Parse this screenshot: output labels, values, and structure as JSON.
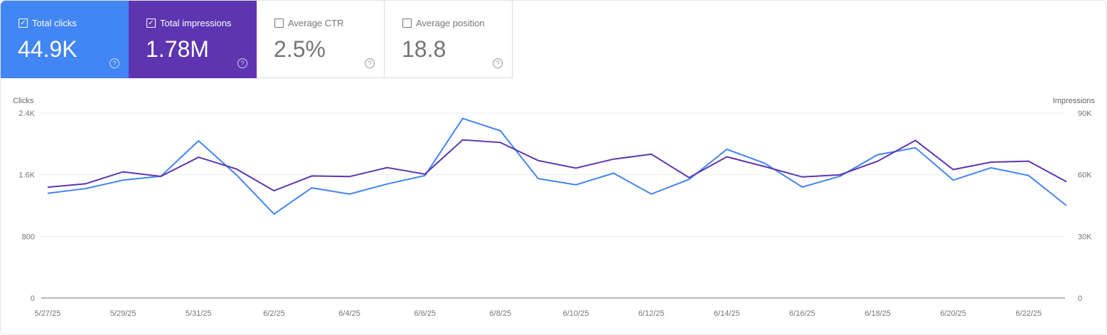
{
  "cards": [
    {
      "label": "Total clicks",
      "value": "44.9K",
      "checked": true,
      "bg": "#4285f4",
      "fg": "#ffffff"
    },
    {
      "label": "Total impressions",
      "value": "1.78M",
      "checked": true,
      "bg": "#5e35b1",
      "fg": "#ffffff"
    },
    {
      "label": "Average CTR",
      "value": "2.5%",
      "checked": false,
      "bg": "#ffffff",
      "fg": "#757575"
    },
    {
      "label": "Average position",
      "value": "18.8",
      "checked": false,
      "bg": "#ffffff",
      "fg": "#757575"
    }
  ],
  "icons": {
    "checked": "checkbox-checked-icon",
    "unchecked": "checkbox-unchecked-icon",
    "help": "help-circle-icon"
  },
  "chart_data": {
    "type": "line",
    "left_axis": {
      "title": "Clicks",
      "ticks": [
        "0",
        "800",
        "1.6K",
        "2.4K"
      ],
      "range": [
        0,
        2400
      ]
    },
    "right_axis": {
      "title": "Impressions",
      "ticks": [
        "0",
        "30K",
        "60K",
        "90K"
      ],
      "range": [
        0,
        90000
      ]
    },
    "x_tick_labels": [
      "5/27/25",
      "5/29/25",
      "5/31/25",
      "6/2/25",
      "6/4/25",
      "6/6/25",
      "6/8/25",
      "6/10/25",
      "6/12/25",
      "6/14/25",
      "6/16/25",
      "6/18/25",
      "6/20/25",
      "6/22/25"
    ],
    "x": [
      "5/27/25",
      "5/28/25",
      "5/29/25",
      "5/30/25",
      "5/31/25",
      "6/1/25",
      "6/2/25",
      "6/3/25",
      "6/4/25",
      "6/5/25",
      "6/6/25",
      "6/7/25",
      "6/8/25",
      "6/9/25",
      "6/10/25",
      "6/11/25",
      "6/12/25",
      "6/13/25",
      "6/14/25",
      "6/15/25",
      "6/16/25",
      "6/17/25",
      "6/18/25",
      "6/19/25",
      "6/20/25",
      "6/21/25",
      "6/22/25",
      "6/23/25"
    ],
    "grid": true,
    "series": [
      {
        "name": "Clicks",
        "axis": "left",
        "color": "#4285f4",
        "values": [
          1360,
          1420,
          1530,
          1580,
          2040,
          1600,
          1090,
          1430,
          1350,
          1480,
          1590,
          2330,
          2170,
          1550,
          1470,
          1620,
          1350,
          1540,
          1930,
          1750,
          1440,
          1580,
          1860,
          1950,
          1530,
          1690,
          1590,
          1200
        ]
      },
      {
        "name": "Impressions",
        "axis": "right",
        "color": "#5e35b1",
        "values": [
          53900,
          55600,
          61400,
          59200,
          68500,
          62800,
          52200,
          59400,
          59100,
          63500,
          60300,
          77000,
          75700,
          66900,
          63200,
          67600,
          70000,
          58600,
          68700,
          64000,
          58900,
          60000,
          66600,
          76700,
          62500,
          66100,
          66600,
          56600
        ]
      }
    ]
  }
}
